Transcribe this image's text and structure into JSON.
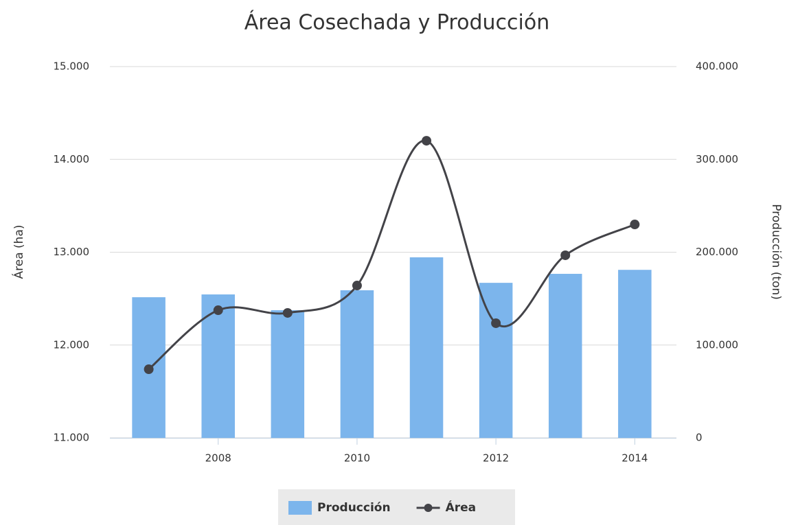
{
  "chart_data": {
    "type": "bar-line",
    "title": "Área Cosechada y Producción",
    "x": [
      2007,
      2008,
      2009,
      2010,
      2011,
      2012,
      2013,
      2014
    ],
    "xlim": [
      2006.44,
      2014.6
    ],
    "xticks": [
      2008,
      2010,
      2012,
      2014
    ],
    "ylabel": "Área (ha)",
    "y2label": "Producción (ton)",
    "ylim": [
      11000,
      15000
    ],
    "yticks": [
      {
        "value": 11000,
        "label": "11.000"
      },
      {
        "value": 12000,
        "label": "12.000"
      },
      {
        "value": 13000,
        "label": "13.000"
      },
      {
        "value": 14000,
        "label": "14.000"
      },
      {
        "value": 15000,
        "label": "15.000"
      }
    ],
    "y2lim": [
      0,
      400000
    ],
    "y2ticks": [
      0,
      {
        "value": 100000,
        "label": "100.000"
      },
      {
        "value": 200000,
        "label": "200.000"
      },
      {
        "value": 300000,
        "label": "300.000"
      },
      {
        "value": 400000,
        "label": "400.000"
      }
    ],
    "grid": true,
    "legend": "bottom",
    "series": [
      {
        "name": "Producción",
        "type": "bar",
        "axis": "y2",
        "color": "#7cb5ec",
        "values": [
          151500,
          154500,
          137500,
          159000,
          194500,
          167000,
          176700,
          181000
        ]
      },
      {
        "name": "Área",
        "type": "line",
        "axis": "y",
        "color": "#434348",
        "values": [
          11739,
          12375,
          12346,
          12641,
          14201,
          12235,
          12967,
          13299
        ]
      }
    ]
  }
}
